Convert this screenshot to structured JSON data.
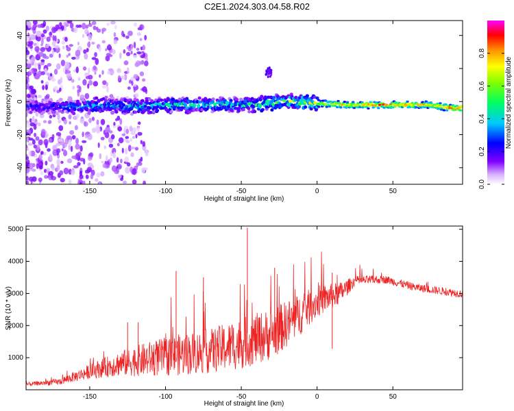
{
  "figure": {
    "title": "C2E1.2024.303.04.58.R02"
  },
  "chart_data": [
    {
      "type": "heatmap",
      "title": "",
      "xlabel": "Height of straight line (km)",
      "ylabel": "Frequency (Hz)",
      "xlim": [
        -192,
        96
      ],
      "ylim": [
        -50,
        49
      ],
      "xticks": [
        -150,
        -100,
        -50,
        0,
        50
      ],
      "yticks": [
        -40,
        -20,
        0,
        20,
        40
      ],
      "xtick_labels": [
        "-150",
        "-100",
        "-50",
        "0",
        "50"
      ],
      "ytick_labels": [
        "-40",
        "-20",
        "0",
        "20",
        "40"
      ],
      "grid": false,
      "colorbar": {
        "label": "Normalized spectral amplitude",
        "range": [
          0,
          1
        ],
        "ticks": [
          0.0,
          0.2,
          0.4,
          0.6,
          0.8
        ],
        "tick_labels": [
          "0.0",
          "0.2",
          "0.4",
          "0.6",
          "0.8"
        ],
        "colormap": [
          "#ffffff",
          "#c080ff",
          "#8000ff",
          "#0000ff",
          "#00c0ff",
          "#00ff80",
          "#80ff00",
          "#ffff00",
          "#ff8000",
          "#ff0000",
          "#ff00ff"
        ]
      },
      "ridge": {
        "description_points": [
          {
            "x": -180,
            "y": -3,
            "amp": 0.25
          },
          {
            "x": -160,
            "y": -3,
            "amp": 0.35
          },
          {
            "x": -140,
            "y": -2,
            "amp": 0.4
          },
          {
            "x": -120,
            "y": -3,
            "amp": 0.42
          },
          {
            "x": -100,
            "y": -2,
            "amp": 0.45
          },
          {
            "x": -80,
            "y": -2,
            "amp": 0.45
          },
          {
            "x": -60,
            "y": -2,
            "amp": 0.45
          },
          {
            "x": -40,
            "y": -2,
            "amp": 0.5
          },
          {
            "x": -20,
            "y": 0,
            "amp": 0.6
          },
          {
            "x": 0,
            "y": -1,
            "amp": 0.7
          },
          {
            "x": 20,
            "y": -2,
            "amp": 0.85
          },
          {
            "x": 50,
            "y": -2,
            "amp": 0.95
          },
          {
            "x": 75,
            "y": -2,
            "amp": 0.8
          },
          {
            "x": 90,
            "y": -4,
            "amp": 1.0
          }
        ],
        "secondary_blob": {
          "x": -32,
          "y": 18,
          "amp": 0.2
        }
      }
    },
    {
      "type": "line",
      "title": "",
      "xlabel": "Height of straight line (km)",
      "ylabel": "SNR (10 * v/v)",
      "xlim": [
        -192,
        96
      ],
      "ylim": [
        0,
        5100
      ],
      "xticks": [
        -150,
        -100,
        -50,
        0,
        50
      ],
      "yticks": [
        1000,
        2000,
        3000,
        4000,
        5000
      ],
      "xtick_labels": [
        "-150",
        "-100",
        "-50",
        "0",
        "50"
      ],
      "ytick_labels": [
        "1000",
        "2000",
        "3000",
        "4000",
        "5000"
      ],
      "grid": false,
      "series": [
        {
          "color": "#ee2222",
          "envelope": [
            {
              "x": -192,
              "base": 150,
              "spread": 120
            },
            {
              "x": -170,
              "base": 220,
              "spread": 200
            },
            {
              "x": -150,
              "base": 500,
              "spread": 450
            },
            {
              "x": -130,
              "base": 700,
              "spread": 800
            },
            {
              "x": -110,
              "base": 800,
              "spread": 1100
            },
            {
              "x": -90,
              "base": 900,
              "spread": 1300
            },
            {
              "x": -70,
              "base": 1000,
              "spread": 1400
            },
            {
              "x": -50,
              "base": 1200,
              "spread": 1600
            },
            {
              "x": -30,
              "base": 1500,
              "spread": 1600
            },
            {
              "x": -15,
              "base": 2000,
              "spread": 1400
            },
            {
              "x": 0,
              "base": 2600,
              "spread": 1000
            },
            {
              "x": 15,
              "base": 2900,
              "spread": 700
            },
            {
              "x": 25,
              "base": 3350,
              "spread": 300
            },
            {
              "x": 45,
              "base": 3400,
              "spread": 250
            },
            {
              "x": 65,
              "base": 3150,
              "spread": 250
            },
            {
              "x": 96,
              "base": 2950,
              "spread": 250
            }
          ],
          "spikes": [
            {
              "x": -46,
              "y": 5050
            },
            {
              "x": -93,
              "y": 3700
            },
            {
              "x": -75,
              "y": 3500
            },
            {
              "x": -28,
              "y": 3800
            },
            {
              "x": 10,
              "y": 3650
            },
            {
              "x": -125,
              "y": 2100
            },
            {
              "x": -118,
              "y": 2100
            }
          ]
        }
      ]
    }
  ]
}
